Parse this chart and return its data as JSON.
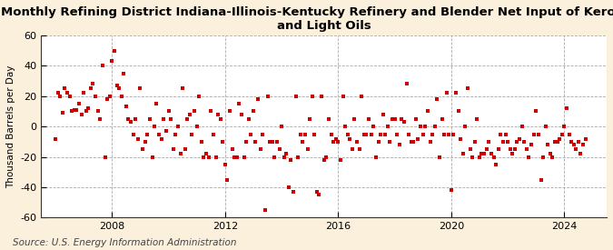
{
  "title": "Monthly Refining District Indiana-Illinois-Kentucky Refinery and Blender Net Input of Kerosene\nand Light Oils",
  "ylabel": "Thousand Barrels per Day",
  "source": "Source: U.S. Energy Information Administration",
  "ylim": [
    -60,
    60
  ],
  "yticks": [
    -60,
    -40,
    -20,
    0,
    20,
    40,
    60
  ],
  "xlim_start": 2005.5,
  "xlim_end": 2025.5,
  "xticks": [
    2008,
    2012,
    2016,
    2020,
    2024
  ],
  "marker_color": "#CC0000",
  "background_color": "#FAF0DC",
  "plot_bg_color": "#FFFFFF",
  "title_fontsize": 9.5,
  "source_fontsize": 7.5,
  "scatter_data": [
    [
      2006.0,
      -8
    ],
    [
      2006.08,
      22
    ],
    [
      2006.17,
      20
    ],
    [
      2006.25,
      9
    ],
    [
      2006.33,
      25
    ],
    [
      2006.42,
      22
    ],
    [
      2006.5,
      20
    ],
    [
      2006.58,
      10
    ],
    [
      2006.67,
      11
    ],
    [
      2006.75,
      11
    ],
    [
      2006.83,
      15
    ],
    [
      2006.92,
      8
    ],
    [
      2007.0,
      22
    ],
    [
      2007.08,
      10
    ],
    [
      2007.17,
      12
    ],
    [
      2007.25,
      25
    ],
    [
      2007.33,
      28
    ],
    [
      2007.42,
      20
    ],
    [
      2007.5,
      10
    ],
    [
      2007.58,
      5
    ],
    [
      2007.67,
      40
    ],
    [
      2007.75,
      -20
    ],
    [
      2007.83,
      18
    ],
    [
      2007.92,
      20
    ],
    [
      2008.0,
      43
    ],
    [
      2008.08,
      50
    ],
    [
      2008.17,
      27
    ],
    [
      2008.25,
      25
    ],
    [
      2008.33,
      20
    ],
    [
      2008.42,
      35
    ],
    [
      2008.5,
      13
    ],
    [
      2008.58,
      5
    ],
    [
      2008.67,
      3
    ],
    [
      2008.75,
      -5
    ],
    [
      2008.83,
      5
    ],
    [
      2008.92,
      -8
    ],
    [
      2009.0,
      25
    ],
    [
      2009.08,
      -15
    ],
    [
      2009.17,
      -10
    ],
    [
      2009.25,
      -5
    ],
    [
      2009.33,
      5
    ],
    [
      2009.42,
      -20
    ],
    [
      2009.5,
      0
    ],
    [
      2009.58,
      15
    ],
    [
      2009.67,
      -5
    ],
    [
      2009.75,
      -8
    ],
    [
      2009.83,
      5
    ],
    [
      2009.92,
      -3
    ],
    [
      2010.0,
      10
    ],
    [
      2010.08,
      5
    ],
    [
      2010.17,
      -15
    ],
    [
      2010.25,
      -5
    ],
    [
      2010.33,
      0
    ],
    [
      2010.42,
      -18
    ],
    [
      2010.5,
      25
    ],
    [
      2010.58,
      -15
    ],
    [
      2010.67,
      5
    ],
    [
      2010.75,
      8
    ],
    [
      2010.83,
      -5
    ],
    [
      2010.92,
      10
    ],
    [
      2011.0,
      0
    ],
    [
      2011.08,
      20
    ],
    [
      2011.17,
      -10
    ],
    [
      2011.25,
      -20
    ],
    [
      2011.33,
      -18
    ],
    [
      2011.42,
      -20
    ],
    [
      2011.5,
      10
    ],
    [
      2011.58,
      -5
    ],
    [
      2011.67,
      -20
    ],
    [
      2011.75,
      8
    ],
    [
      2011.83,
      5
    ],
    [
      2011.92,
      -10
    ],
    [
      2012.0,
      -25
    ],
    [
      2012.08,
      -35
    ],
    [
      2012.17,
      10
    ],
    [
      2012.25,
      -15
    ],
    [
      2012.33,
      -20
    ],
    [
      2012.42,
      -20
    ],
    [
      2012.5,
      15
    ],
    [
      2012.58,
      8
    ],
    [
      2012.67,
      -20
    ],
    [
      2012.75,
      -10
    ],
    [
      2012.83,
      5
    ],
    [
      2012.92,
      -5
    ],
    [
      2013.0,
      10
    ],
    [
      2013.08,
      -10
    ],
    [
      2013.17,
      18
    ],
    [
      2013.25,
      -15
    ],
    [
      2013.33,
      -5
    ],
    [
      2013.42,
      -55
    ],
    [
      2013.5,
      20
    ],
    [
      2013.58,
      -10
    ],
    [
      2013.67,
      -10
    ],
    [
      2013.75,
      -20
    ],
    [
      2013.83,
      -10
    ],
    [
      2013.92,
      -15
    ],
    [
      2014.0,
      0
    ],
    [
      2014.08,
      -20
    ],
    [
      2014.17,
      -18
    ],
    [
      2014.25,
      -40
    ],
    [
      2014.33,
      -22
    ],
    [
      2014.42,
      -43
    ],
    [
      2014.5,
      20
    ],
    [
      2014.58,
      -20
    ],
    [
      2014.67,
      -5
    ],
    [
      2014.75,
      -10
    ],
    [
      2014.83,
      -5
    ],
    [
      2014.92,
      -15
    ],
    [
      2015.0,
      5
    ],
    [
      2015.08,
      20
    ],
    [
      2015.17,
      -5
    ],
    [
      2015.25,
      -43
    ],
    [
      2015.33,
      -45
    ],
    [
      2015.42,
      20
    ],
    [
      2015.5,
      -22
    ],
    [
      2015.58,
      -20
    ],
    [
      2015.67,
      5
    ],
    [
      2015.75,
      -5
    ],
    [
      2015.83,
      -10
    ],
    [
      2015.92,
      -8
    ],
    [
      2016.0,
      -10
    ],
    [
      2016.08,
      -22
    ],
    [
      2016.17,
      20
    ],
    [
      2016.25,
      0
    ],
    [
      2016.33,
      -5
    ],
    [
      2016.42,
      -8
    ],
    [
      2016.5,
      -15
    ],
    [
      2016.58,
      5
    ],
    [
      2016.67,
      -10
    ],
    [
      2016.75,
      -15
    ],
    [
      2016.83,
      20
    ],
    [
      2016.92,
      -5
    ],
    [
      2017.0,
      -5
    ],
    [
      2017.08,
      5
    ],
    [
      2017.17,
      -5
    ],
    [
      2017.25,
      0
    ],
    [
      2017.33,
      -20
    ],
    [
      2017.42,
      -10
    ],
    [
      2017.5,
      -5
    ],
    [
      2017.58,
      8
    ],
    [
      2017.67,
      -5
    ],
    [
      2017.75,
      0
    ],
    [
      2017.83,
      -10
    ],
    [
      2017.92,
      5
    ],
    [
      2018.0,
      5
    ],
    [
      2018.08,
      -5
    ],
    [
      2018.17,
      -12
    ],
    [
      2018.25,
      5
    ],
    [
      2018.33,
      3
    ],
    [
      2018.42,
      28
    ],
    [
      2018.5,
      -5
    ],
    [
      2018.58,
      -10
    ],
    [
      2018.67,
      -10
    ],
    [
      2018.75,
      5
    ],
    [
      2018.83,
      -8
    ],
    [
      2018.92,
      0
    ],
    [
      2019.0,
      -5
    ],
    [
      2019.08,
      0
    ],
    [
      2019.17,
      10
    ],
    [
      2019.25,
      -10
    ],
    [
      2019.33,
      -5
    ],
    [
      2019.42,
      0
    ],
    [
      2019.5,
      18
    ],
    [
      2019.58,
      -20
    ],
    [
      2019.67,
      5
    ],
    [
      2019.75,
      -5
    ],
    [
      2019.83,
      22
    ],
    [
      2019.92,
      -5
    ],
    [
      2020.0,
      -42
    ],
    [
      2020.08,
      -5
    ],
    [
      2020.17,
      22
    ],
    [
      2020.25,
      10
    ],
    [
      2020.33,
      -8
    ],
    [
      2020.42,
      -18
    ],
    [
      2020.5,
      0
    ],
    [
      2020.58,
      25
    ],
    [
      2020.67,
      -15
    ],
    [
      2020.75,
      -20
    ],
    [
      2020.83,
      -10
    ],
    [
      2020.92,
      5
    ],
    [
      2021.0,
      -20
    ],
    [
      2021.08,
      -18
    ],
    [
      2021.17,
      -18
    ],
    [
      2021.25,
      -15
    ],
    [
      2021.33,
      -10
    ],
    [
      2021.42,
      -18
    ],
    [
      2021.5,
      -20
    ],
    [
      2021.58,
      -25
    ],
    [
      2021.67,
      -15
    ],
    [
      2021.75,
      -5
    ],
    [
      2021.83,
      -10
    ],
    [
      2021.92,
      -5
    ],
    [
      2022.0,
      -10
    ],
    [
      2022.08,
      -15
    ],
    [
      2022.17,
      -18
    ],
    [
      2022.25,
      -15
    ],
    [
      2022.33,
      -10
    ],
    [
      2022.42,
      -8
    ],
    [
      2022.5,
      0
    ],
    [
      2022.58,
      -10
    ],
    [
      2022.67,
      -15
    ],
    [
      2022.75,
      -20
    ],
    [
      2022.83,
      -12
    ],
    [
      2022.92,
      -5
    ],
    [
      2023.0,
      10
    ],
    [
      2023.08,
      -5
    ],
    [
      2023.17,
      -35
    ],
    [
      2023.25,
      -20
    ],
    [
      2023.33,
      0
    ],
    [
      2023.42,
      -12
    ],
    [
      2023.5,
      -18
    ],
    [
      2023.58,
      -20
    ],
    [
      2023.67,
      -10
    ],
    [
      2023.75,
      -10
    ],
    [
      2023.83,
      -8
    ],
    [
      2023.92,
      -5
    ],
    [
      2024.0,
      0
    ],
    [
      2024.08,
      12
    ],
    [
      2024.17,
      -5
    ],
    [
      2024.25,
      -10
    ],
    [
      2024.33,
      -12
    ],
    [
      2024.42,
      -15
    ],
    [
      2024.5,
      -10
    ],
    [
      2024.58,
      -18
    ],
    [
      2024.67,
      -12
    ],
    [
      2024.75,
      -8
    ]
  ]
}
